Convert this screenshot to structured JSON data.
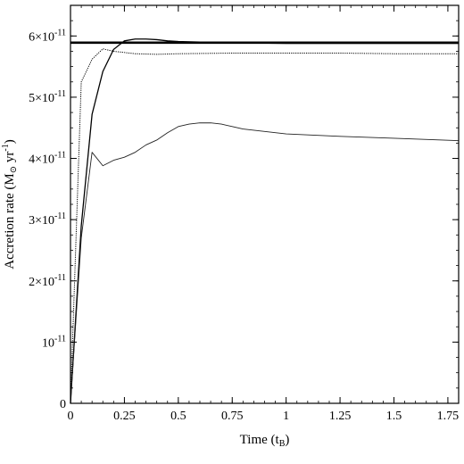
{
  "chart_data": {
    "type": "line",
    "title": "",
    "xlabel": "Time (t",
    "xlabel_sub": "B",
    "xlabel_end": ")",
    "ylabel": "Accretion rate (M",
    "ylabel_sun": "⊙",
    "ylabel_unit": " yr",
    "ylabel_exp": "-1",
    "ylabel_end": ")",
    "xlim": [
      0,
      1.8
    ],
    "ylim": [
      0,
      6.5e-11
    ],
    "grid": false,
    "x_ticks": [
      {
        "value": 0,
        "label": "0"
      },
      {
        "value": 0.25,
        "label": "0.25"
      },
      {
        "value": 0.5,
        "label": "0.5"
      },
      {
        "value": 0.75,
        "label": "0.75"
      },
      {
        "value": 1,
        "label": "1"
      },
      {
        "value": 1.25,
        "label": "1.25"
      },
      {
        "value": 1.5,
        "label": "1.5"
      },
      {
        "value": 1.75,
        "label": "1.75"
      }
    ],
    "y_ticks": [
      {
        "value": 0,
        "mantissa": "0",
        "exponent": ""
      },
      {
        "value": 1e-11,
        "mantissa": "10",
        "exponent": "-11"
      },
      {
        "value": 2e-11,
        "mantissa": "2×10",
        "exponent": "-11"
      },
      {
        "value": 3e-11,
        "mantissa": "3×10",
        "exponent": "-11"
      },
      {
        "value": 4e-11,
        "mantissa": "4×10",
        "exponent": "-11"
      },
      {
        "value": 5e-11,
        "mantissa": "5×10",
        "exponent": "-11"
      },
      {
        "value": 6e-11,
        "mantissa": "6×10",
        "exponent": "-11"
      }
    ],
    "y_minor_step": 2.5e-12,
    "x_minor_step": 0.05,
    "series": [
      {
        "style": "thick-reference",
        "x": [
          0,
          1.8
        ],
        "y": [
          5.89e-11,
          5.89e-11
        ]
      },
      {
        "style": "solid",
        "x": [
          0,
          0.05,
          0.1,
          0.15,
          0.2,
          0.25,
          0.3,
          0.35,
          0.4,
          0.45,
          0.5,
          0.6,
          0.75,
          1.0,
          1.25,
          1.5,
          1.8
        ],
        "y": [
          0,
          2.9e-11,
          4.72e-11,
          5.42e-11,
          5.78e-11,
          5.92e-11,
          5.95e-11,
          5.95e-11,
          5.94e-11,
          5.92e-11,
          5.91e-11,
          5.9e-11,
          5.89e-11,
          5.88e-11,
          5.88e-11,
          5.88e-11,
          5.88e-11
        ]
      },
      {
        "style": "dotted",
        "x": [
          0,
          0.05,
          0.1,
          0.15,
          0.2,
          0.3,
          0.4,
          0.5,
          0.75,
          1.0,
          1.25,
          1.5,
          1.8
        ],
        "y": [
          0,
          5.25e-11,
          5.62e-11,
          5.79e-11,
          5.75e-11,
          5.71e-11,
          5.7e-11,
          5.71e-11,
          5.72e-11,
          5.72e-11,
          5.72e-11,
          5.71e-11,
          5.71e-11
        ]
      },
      {
        "style": "thin",
        "x": [
          0,
          0.05,
          0.1,
          0.15,
          0.2,
          0.25,
          0.3,
          0.35,
          0.4,
          0.45,
          0.5,
          0.55,
          0.6,
          0.65,
          0.7,
          0.75,
          0.8,
          1.0,
          1.25,
          1.5,
          1.8
        ],
        "y": [
          0,
          2.7e-11,
          4.1e-11,
          3.88e-11,
          3.97e-11,
          4.02e-11,
          4.1e-11,
          4.22e-11,
          4.3e-11,
          4.42e-11,
          4.52e-11,
          4.56e-11,
          4.58e-11,
          4.58e-11,
          4.56e-11,
          4.52e-11,
          4.48e-11,
          4.4e-11,
          4.36e-11,
          4.33e-11,
          4.29e-11
        ]
      }
    ]
  }
}
